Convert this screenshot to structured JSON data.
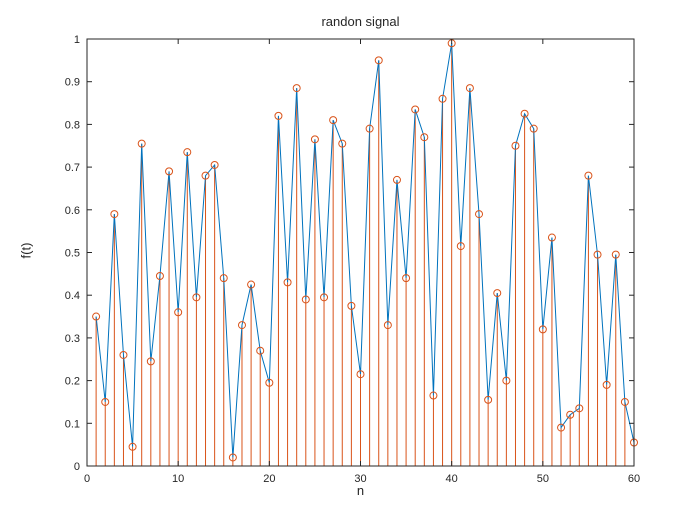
{
  "chart_data": {
    "type": "stem",
    "title": "randon signal",
    "xlabel": "n",
    "ylabel": "f(t)",
    "xlim": [
      0,
      60
    ],
    "ylim": [
      0,
      1
    ],
    "xticks": [
      0,
      10,
      20,
      30,
      40,
      50,
      60
    ],
    "yticks": [
      0,
      0.1,
      0.2,
      0.3,
      0.4,
      0.5,
      0.6,
      0.7,
      0.8,
      0.9,
      1
    ],
    "grid": false,
    "legend_position": "none",
    "stem_color": "#D95319",
    "line_color": "#0072BD",
    "axis_color": "#262626",
    "x": [
      1,
      2,
      3,
      4,
      5,
      6,
      7,
      8,
      9,
      10,
      11,
      12,
      13,
      14,
      15,
      16,
      17,
      18,
      19,
      20,
      21,
      22,
      23,
      24,
      25,
      26,
      27,
      28,
      29,
      30,
      31,
      32,
      33,
      34,
      35,
      36,
      37,
      38,
      39,
      40,
      41,
      42,
      43,
      44,
      45,
      46,
      47,
      48,
      49,
      50,
      51,
      52,
      53,
      54,
      55,
      56,
      57,
      58,
      59,
      60
    ],
    "values": [
      0.35,
      0.15,
      0.59,
      0.26,
      0.045,
      0.755,
      0.245,
      0.445,
      0.69,
      0.36,
      0.735,
      0.395,
      0.68,
      0.705,
      0.44,
      0.02,
      0.33,
      0.425,
      0.27,
      0.195,
      0.82,
      0.43,
      0.885,
      0.39,
      0.765,
      0.395,
      0.81,
      0.755,
      0.375,
      0.215,
      0.79,
      0.95,
      0.33,
      0.67,
      0.44,
      0.835,
      0.77,
      0.165,
      0.86,
      0.99,
      0.515,
      0.885,
      0.59,
      0.155,
      0.405,
      0.2,
      0.75,
      0.825,
      0.79,
      0.32,
      0.535,
      0.09,
      0.12,
      0.135,
      0.68,
      0.495,
      0.19,
      0.495,
      0.15,
      0.055
    ]
  }
}
